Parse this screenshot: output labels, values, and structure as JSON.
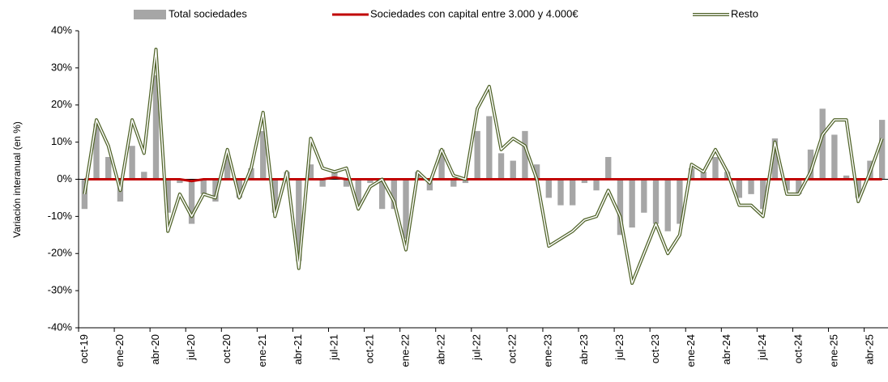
{
  "chart_data": {
    "type": "bar-line",
    "y_label": "Variación interanual (en %)",
    "categories": [
      "oct-19",
      null,
      null,
      "ene-20",
      null,
      null,
      "abr-20",
      null,
      null,
      "jul-20",
      null,
      null,
      "oct-20",
      null,
      null,
      "ene-21",
      null,
      null,
      "abr-21",
      null,
      null,
      "jul-21",
      null,
      null,
      "oct-21",
      null,
      null,
      "ene-22",
      null,
      null,
      "abr-22",
      null,
      null,
      "jul-22",
      null,
      null,
      "oct-22",
      null,
      null,
      "ene-23",
      null,
      null,
      "abr-23",
      null,
      null,
      "jul-23",
      null,
      null,
      "oct-23",
      null,
      null,
      "ene-24",
      null,
      null,
      "abr-24",
      null,
      null,
      "jul-24",
      null,
      null,
      "oct-24",
      null,
      null,
      "ene-25",
      null,
      null,
      "abr-25",
      null
    ],
    "series": [
      {
        "name": "Total sociedades",
        "kind": "bar",
        "color": "#a6a6a6",
        "values": [
          -8,
          15,
          6,
          -6,
          9,
          2,
          28,
          -9,
          -1,
          -12,
          -4,
          -6,
          6,
          -5,
          3,
          13,
          -9,
          2,
          -22,
          4,
          -2,
          2,
          -2,
          -7,
          -1,
          -8,
          -8,
          -16,
          2,
          -3,
          8,
          -2,
          -1,
          13,
          17,
          7,
          5,
          13,
          4,
          -5,
          -7,
          -7,
          -1,
          -3,
          6,
          -15,
          -13,
          -9,
          -12,
          -14,
          -12,
          3,
          2,
          6,
          2,
          -5,
          -4,
          -8,
          11,
          -3,
          -4,
          8,
          19,
          12,
          1,
          -5,
          5,
          16
        ]
      },
      {
        "name": "Sociedades con capital entre 3.000 y 4.000€",
        "kind": "line",
        "color": "#c00000",
        "values": [
          0,
          0,
          0,
          0,
          0,
          0,
          0,
          0,
          0,
          -0.5,
          0,
          0,
          0,
          0,
          0,
          0,
          0,
          0,
          0,
          0,
          0,
          0.5,
          0,
          0,
          0,
          0,
          0,
          0,
          0,
          0,
          0,
          0,
          0,
          0,
          0,
          0,
          0,
          0,
          0,
          0,
          0,
          0,
          0,
          0,
          0,
          0,
          0,
          0,
          0,
          0,
          0,
          0,
          0,
          0,
          0,
          0,
          0,
          0,
          0,
          0,
          0,
          0,
          0,
          0,
          0,
          0,
          0,
          0
        ]
      },
      {
        "name": "Resto",
        "kind": "double-line",
        "color": "#4f6228",
        "values": [
          -4,
          16,
          9,
          -3,
          16,
          7,
          35,
          -14,
          -4,
          -10,
          -4,
          -5,
          8,
          -5,
          3,
          18,
          -10,
          2,
          -24,
          11,
          3,
          2,
          3,
          -8,
          -2,
          0,
          -6,
          -19,
          2,
          -1,
          8,
          1,
          0,
          19,
          25,
          8,
          11,
          9,
          0,
          -18,
          -16,
          -14,
          -11,
          -10,
          -3,
          -10,
          -28,
          -20,
          -12,
          -20,
          -15,
          4,
          2,
          8,
          2,
          -7,
          -7,
          -10,
          10,
          -4,
          -4,
          2,
          12,
          16,
          16,
          -6,
          2,
          11
        ]
      }
    ],
    "ylim": [
      -40,
      40
    ],
    "yticks": [
      {
        "value": -40,
        "label": "-40%"
      },
      {
        "value": -30,
        "label": "-30%"
      },
      {
        "value": -20,
        "label": "-20%"
      },
      {
        "value": -10,
        "label": "-10%"
      },
      {
        "value": 0,
        "label": "0%"
      },
      {
        "value": 10,
        "label": "10%"
      },
      {
        "value": 20,
        "label": "20%"
      },
      {
        "value": 30,
        "label": "30%"
      },
      {
        "value": 40,
        "label": "40%"
      }
    ],
    "grid": false,
    "legend": "top"
  }
}
